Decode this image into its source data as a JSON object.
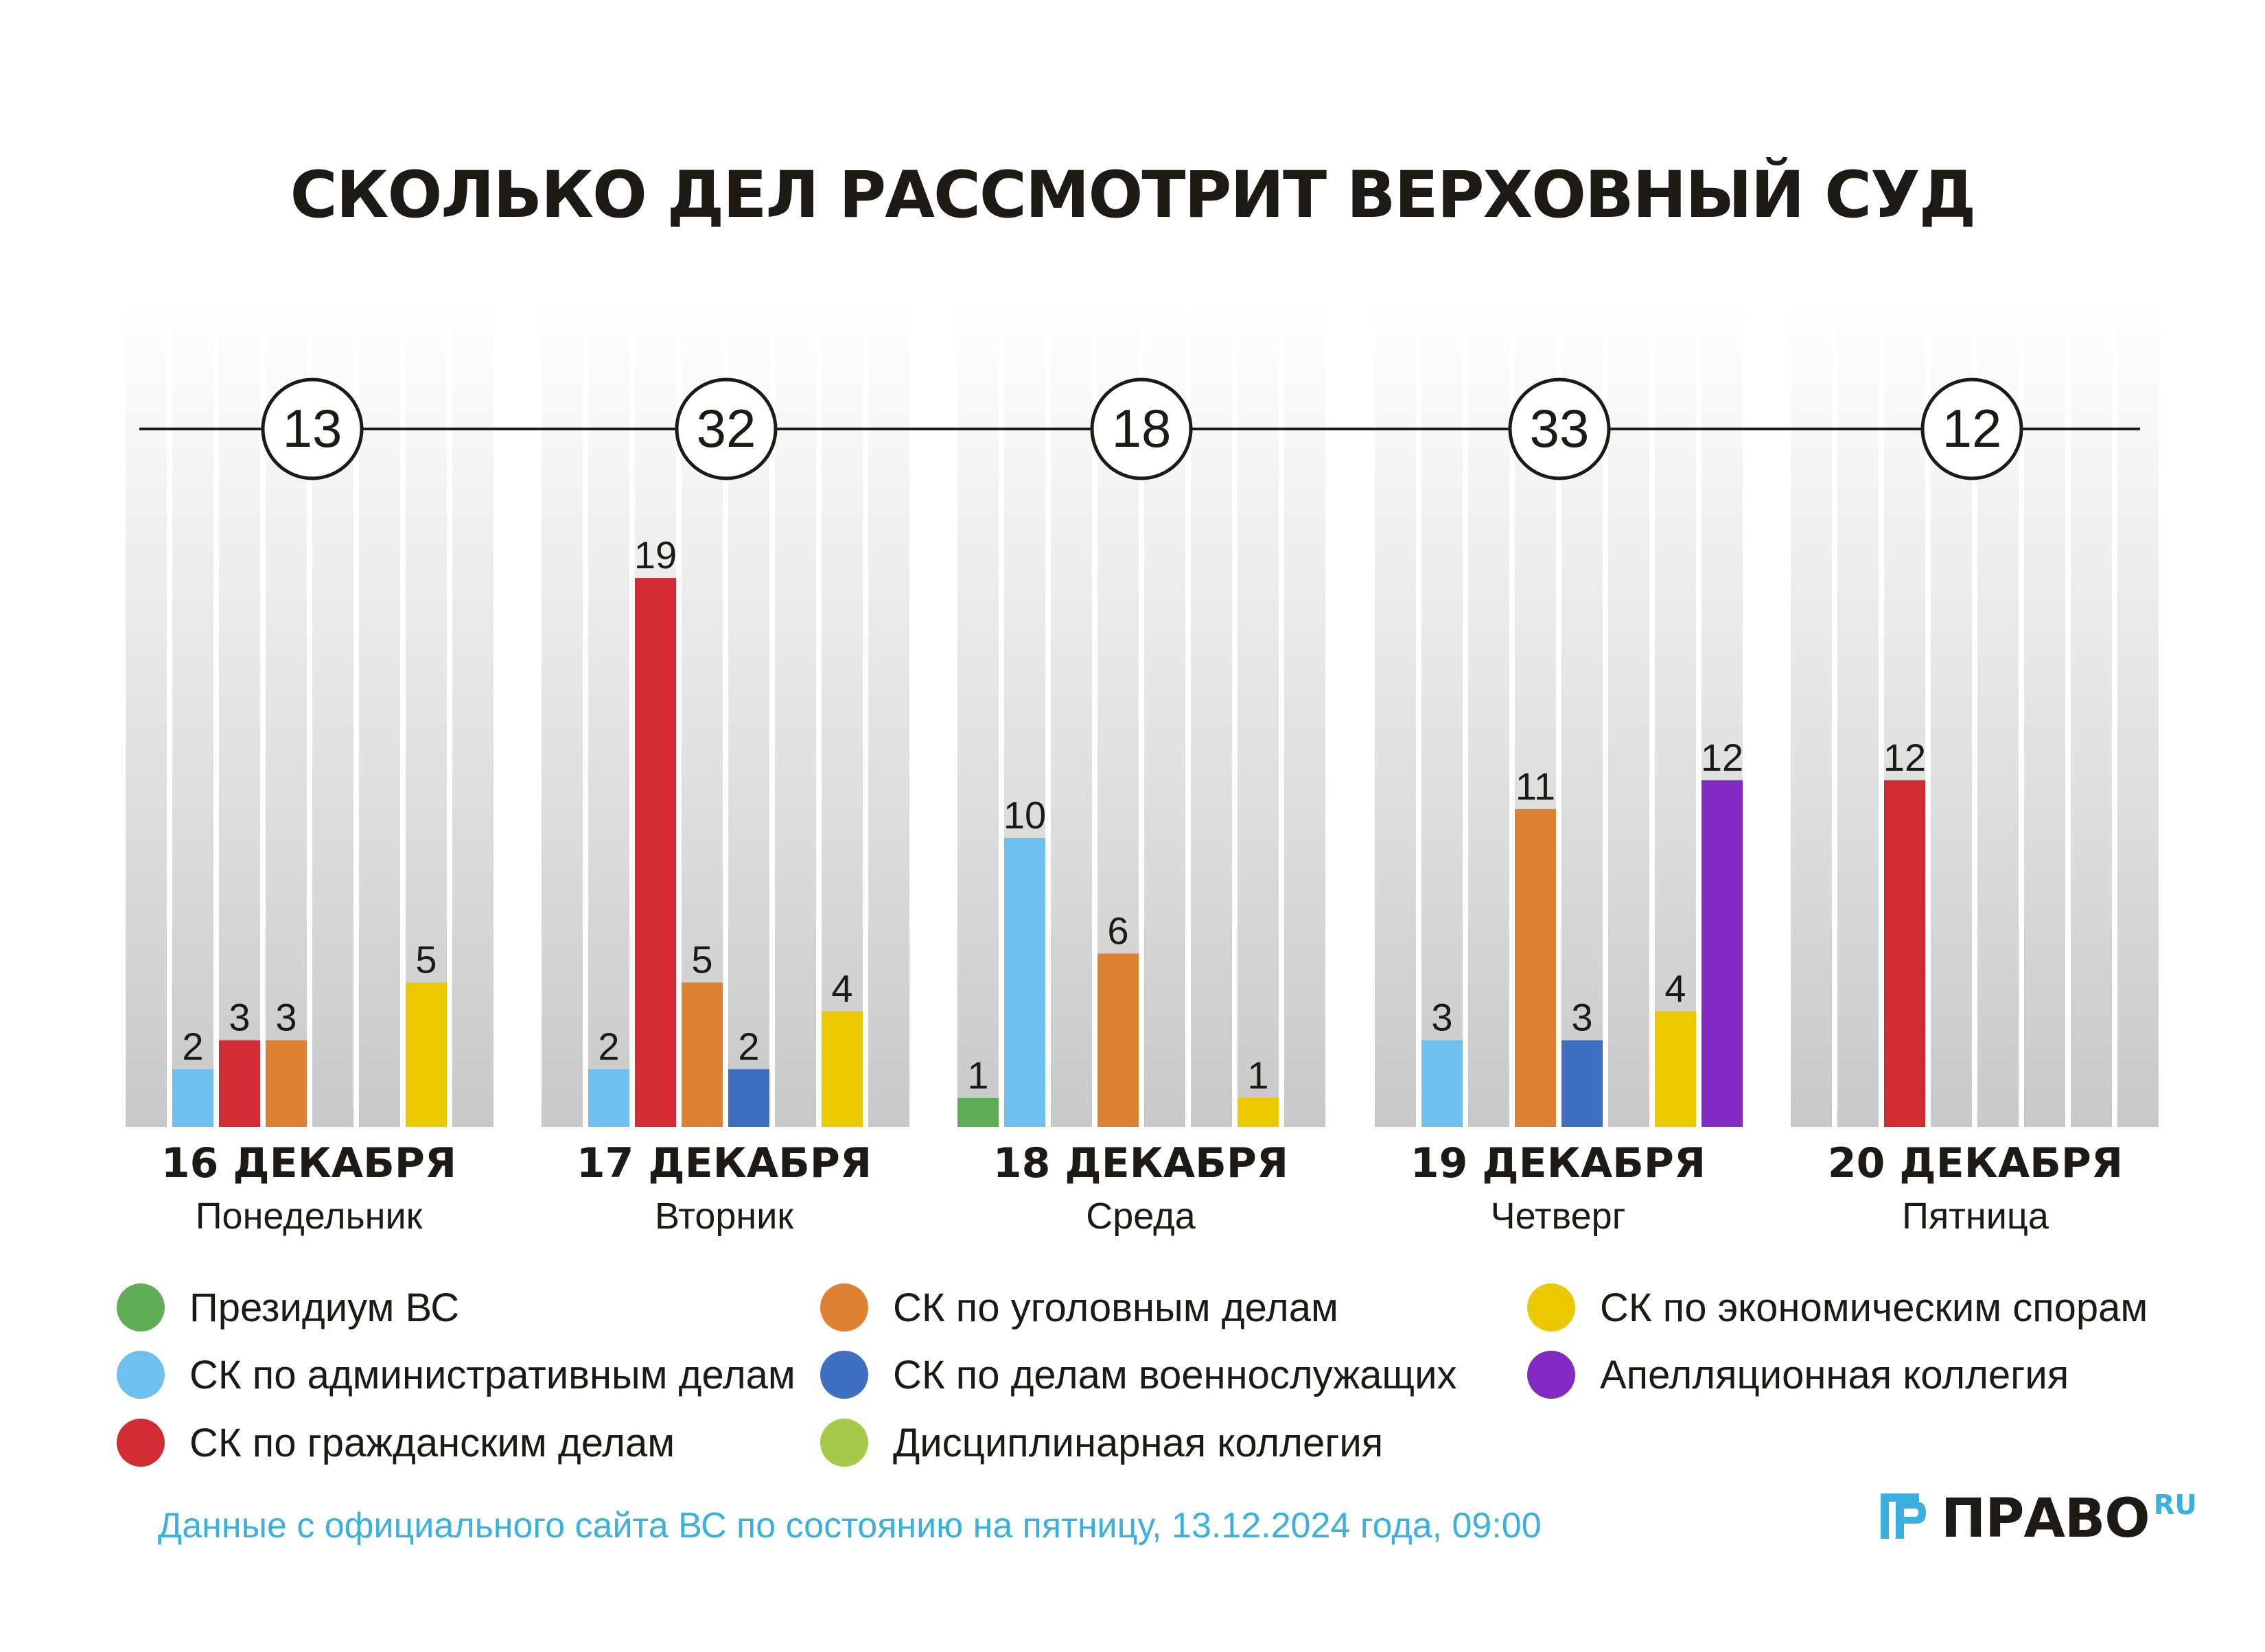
{
  "title": "СКОЛЬКО ДЕЛ РАССМОТРИТ ВЕРХОВНЫЙ СУД",
  "colors": {
    "presidium": "#5fad56",
    "admin": "#6ec1ee",
    "civil": "#d12b34",
    "criminal": "#de8132",
    "military": "#3e6fc1",
    "disciplinary": "#a7c94a",
    "economic": "#ecc800",
    "appeal": "#832ac3",
    "column_bg_top": "#ffffff",
    "column_bg_bottom": "#c9c8c8",
    "text": "#1d1a16",
    "source": "#3ab0de"
  },
  "chart_data": {
    "type": "bar",
    "title": "СКОЛЬКО ДЕЛ РАССМОТРИТ ВЕРХОВНЫЙ СУД",
    "ylim": [
      0,
      20
    ],
    "series_names": [
      "Президиум ВС",
      "СК по административным делам",
      "СК по гражданским делам",
      "СК по уголовным делам",
      "СК по делам военнослужащих",
      "Дисциплинарная коллегия",
      "СК по экономическим спорам",
      "Апелляционная коллегия"
    ],
    "series_keys": [
      "presidium",
      "admin",
      "civil",
      "criminal",
      "military",
      "disciplinary",
      "economic",
      "appeal"
    ],
    "days": [
      {
        "date": "16 ДЕКАБРЯ",
        "weekday": "Понедельник",
        "total": "13",
        "values": [
          null,
          2,
          3,
          3,
          null,
          null,
          5,
          null
        ]
      },
      {
        "date": "17 ДЕКАБРЯ",
        "weekday": "Вторник",
        "total": "32",
        "values": [
          null,
          2,
          19,
          5,
          2,
          null,
          4,
          null
        ]
      },
      {
        "date": "18 ДЕКАБРЯ",
        "weekday": "Среда",
        "total": "18",
        "values": [
          1,
          10,
          null,
          6,
          null,
          null,
          1,
          null
        ]
      },
      {
        "date": "19 ДЕКАБРЯ",
        "weekday": "Четверг",
        "total": "33",
        "values": [
          null,
          3,
          null,
          11,
          3,
          null,
          4,
          12
        ]
      },
      {
        "date": "20 ДЕКАБРЯ",
        "weekday": "Пятница",
        "total": "12",
        "values": [
          null,
          null,
          12,
          null,
          null,
          null,
          null,
          null
        ]
      }
    ]
  },
  "legend": [
    {
      "key": "presidium",
      "label": "Президиум ВС"
    },
    {
      "key": "admin",
      "label": "СК по административным делам"
    },
    {
      "key": "civil",
      "label": "СК по гражданским делам"
    },
    {
      "key": "criminal",
      "label": "СК по уголовным делам"
    },
    {
      "key": "military",
      "label": "СК по делам военнослужащих"
    },
    {
      "key": "disciplinary",
      "label": "Дисциплинарная коллегия"
    },
    {
      "key": "economic",
      "label": "СК по экономическим спорам"
    },
    {
      "key": "appeal",
      "label": "Апелляционная коллегия"
    }
  ],
  "source": "Данные с официального сайта ВС по состоянию на пятницу, 13.12.2024 года, 09:00",
  "logo": {
    "text": "ПРАВО",
    "suffix": "RU"
  }
}
